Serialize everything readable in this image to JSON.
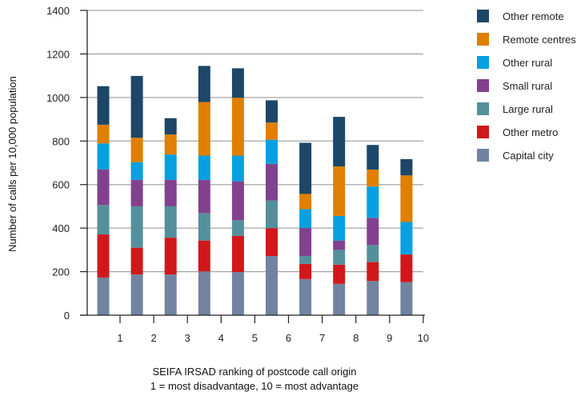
{
  "chart_data": {
    "type": "bar",
    "stacked": true,
    "title": "",
    "xlabel": [
      "SEIFA IRSAD ranking of postcode call origin",
      "1 = most disadvantage, 10 = most advantage"
    ],
    "ylabel": "Number of calls per 10,000 population",
    "ylim": [
      0,
      1400
    ],
    "yticks": [
      0,
      200,
      400,
      600,
      800,
      1000,
      1200,
      1400
    ],
    "grid": true,
    "legend_position": "top-right",
    "categories": [
      "1",
      "2",
      "3",
      "4",
      "5",
      "6",
      "7",
      "8",
      "9",
      "10"
    ],
    "series": [
      {
        "name": "Capital city",
        "color": "#7183a0",
        "values": [
          173,
          187,
          187,
          201,
          198,
          272,
          166,
          144,
          157,
          152
        ]
      },
      {
        "name": "Other metro",
        "color": "#d0181b",
        "values": [
          198,
          123,
          169,
          142,
          166,
          128,
          70,
          88,
          87,
          127
        ]
      },
      {
        "name": "Large rural",
        "color": "#54909c",
        "values": [
          135,
          190,
          144,
          126,
          72,
          127,
          36,
          68,
          78,
          0
        ]
      },
      {
        "name": "Small rural",
        "color": "#82418f",
        "values": [
          164,
          122,
          122,
          153,
          179,
          168,
          128,
          43,
          125,
          0
        ]
      },
      {
        "name": "Other rural",
        "color": "#06a0e1",
        "values": [
          119,
          81,
          116,
          111,
          118,
          111,
          87,
          113,
          144,
          149
        ]
      },
      {
        "name": "Remote centres",
        "color": "#e07f00",
        "values": [
          86,
          112,
          92,
          246,
          266,
          79,
          70,
          227,
          78,
          214
        ]
      },
      {
        "name": "Other remote",
        "color": "#1d4668",
        "values": [
          177,
          284,
          75,
          166,
          135,
          102,
          235,
          228,
          113,
          75
        ]
      }
    ],
    "legend_order": [
      "Other remote",
      "Remote centres",
      "Other rural",
      "Small rural",
      "Large rural",
      "Other metro",
      "Capital city"
    ]
  }
}
